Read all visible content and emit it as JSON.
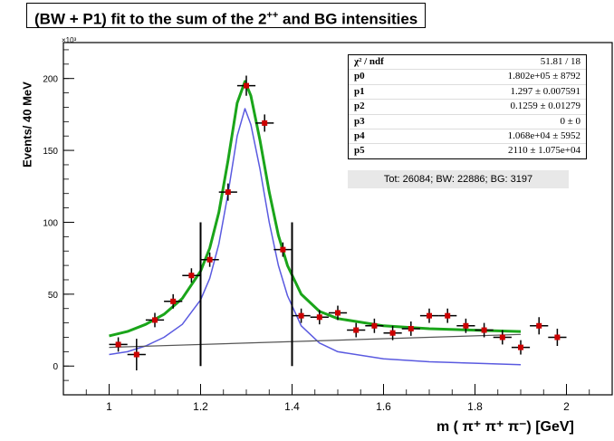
{
  "title": {
    "main": "(BW + P1) fit to the sum of the 2",
    "sup": "++",
    "tail": " and BG intensities"
  },
  "axis": {
    "ylabel": "Events/ 40 MeV",
    "xlabel": "m ( π⁺ π⁺ π⁻)  [GeV]",
    "exponent": "×10³"
  },
  "stats": {
    "rows": [
      {
        "key": "χ² / ndf",
        "val": "51.81 / 18"
      },
      {
        "key": "p0",
        "val": "1.802e+05 ±  8792"
      },
      {
        "key": "p1",
        "val": "1.297 ± 0.007591"
      },
      {
        "key": "p2",
        "val": "0.1259 ± 0.01279"
      },
      {
        "key": "p3",
        "val": "0 ±    0"
      },
      {
        "key": "p4",
        "val": "1.068e+04 ±  5952"
      },
      {
        "key": "p5",
        "val": "2110 ± 1.075e+04"
      }
    ]
  },
  "totals": "Tot: 26084; BW: 22886; BG: 3197",
  "colors": {
    "total_fit": "#1aa51a",
    "bw_curve": "#5a5ae0",
    "background": "#555555",
    "points": "#cc0000"
  },
  "chart_data": {
    "type": "scatter",
    "title": "(BW + P1) fit to the sum of the 2++ and BG intensities",
    "xlabel": "m ( π⁺ π⁺ π⁻)  [GeV]",
    "ylabel": "Events/ 40 MeV",
    "xlim": [
      0.9,
      2.1
    ],
    "ylim": [
      -20,
      225
    ],
    "x_ticks": [
      1,
      1.2,
      1.4,
      1.6,
      1.8,
      2
    ],
    "y_ticks": [
      0,
      50,
      100,
      150,
      200
    ],
    "grid": false,
    "series": [
      {
        "kind": "points",
        "x": [
          1.02,
          1.06,
          1.1,
          1.14,
          1.18,
          1.22,
          1.26,
          1.3,
          1.34,
          1.38,
          1.42,
          1.46,
          1.5,
          1.54,
          1.58,
          1.62,
          1.66,
          1.7,
          1.74,
          1.78,
          1.82,
          1.86,
          1.9,
          1.94,
          1.98
        ],
        "y": [
          15,
          8,
          32,
          45,
          63,
          74,
          121,
          195,
          169,
          81,
          35,
          34,
          37,
          25,
          28,
          23,
          26,
          35,
          35,
          28,
          25,
          20,
          13,
          28,
          20
        ],
        "yerr": [
          5,
          11,
          5,
          5,
          5,
          5,
          6,
          7,
          6,
          5,
          5,
          5,
          5,
          5,
          5,
          5,
          5,
          5,
          5,
          5,
          5,
          5,
          5,
          6,
          6
        ]
      },
      {
        "kind": "curve",
        "role": "total_fit",
        "x": [
          1.0,
          1.04,
          1.08,
          1.12,
          1.16,
          1.2,
          1.22,
          1.24,
          1.26,
          1.28,
          1.297,
          1.31,
          1.33,
          1.35,
          1.37,
          1.39,
          1.42,
          1.46,
          1.5,
          1.6,
          1.7,
          1.8,
          1.9
        ],
        "y": [
          21,
          24,
          29,
          36,
          47,
          66,
          82,
          107,
          143,
          183,
          198,
          188,
          157,
          121,
          91,
          70,
          50,
          38,
          33,
          28,
          26,
          25,
          24
        ]
      },
      {
        "kind": "curve",
        "role": "bw_curve",
        "x": [
          1.0,
          1.04,
          1.08,
          1.12,
          1.16,
          1.2,
          1.22,
          1.24,
          1.26,
          1.28,
          1.297,
          1.31,
          1.33,
          1.35,
          1.37,
          1.39,
          1.42,
          1.46,
          1.5,
          1.6,
          1.7,
          1.8,
          1.9
        ],
        "y": [
          8,
          10,
          14,
          20,
          29,
          46,
          61,
          85,
          120,
          160,
          179,
          168,
          137,
          100,
          70,
          49,
          28,
          16,
          10,
          5,
          3,
          2,
          1
        ]
      },
      {
        "kind": "curve",
        "role": "background",
        "x": [
          1.0,
          1.9
        ],
        "y": [
          13,
          22
        ]
      }
    ],
    "markers": [
      1.2,
      1.4
    ],
    "marker_range": [
      0,
      100
    ]
  }
}
